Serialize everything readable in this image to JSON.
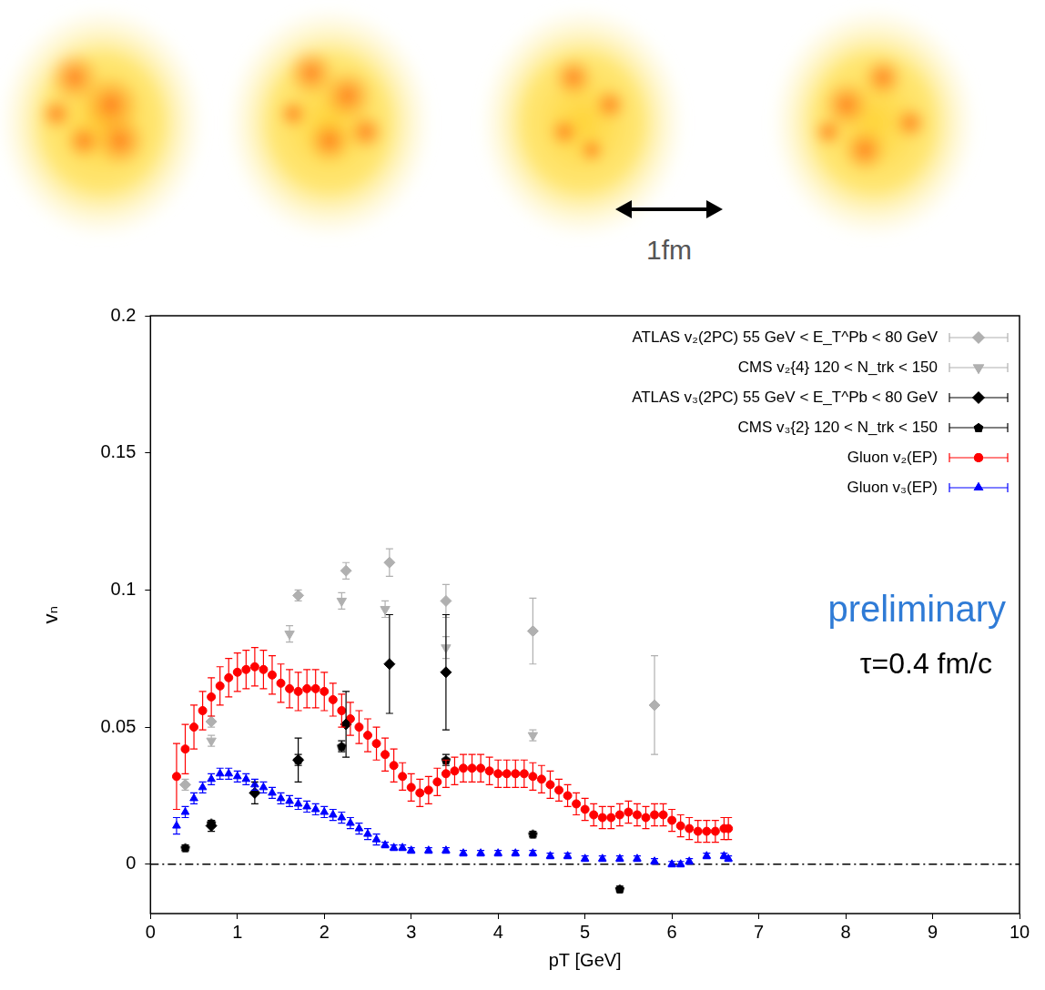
{
  "image_row": {
    "scale_label": "1fm"
  },
  "chart_data": {
    "type": "scatter",
    "x_label": "pT [GeV]",
    "y_label": "vₙ",
    "xlim": [
      0,
      10
    ],
    "xticks": [
      0,
      1,
      2,
      3,
      4,
      5,
      6,
      7,
      8,
      9,
      10
    ],
    "ylim": [
      -0.018,
      0.2
    ],
    "yticks": [
      0,
      0.05,
      0.1,
      0.15,
      0.2
    ],
    "grid": false,
    "legend": "top right",
    "hline": 0,
    "annotations": [
      {
        "text": "preliminary",
        "color": "#2f7bd6"
      },
      {
        "text": "τ=0.4 fm/c",
        "color": "#000000"
      }
    ],
    "series": [
      {
        "name": "ATLAS v₂(2PC) 55 GeV < E_T^Pb < 80 GeV",
        "color": "#b0b0b0",
        "marker": "diamond",
        "x": [
          0.4,
          0.7,
          1.7,
          2.25,
          2.75,
          3.4,
          4.4,
          5.8
        ],
        "values": [
          0.029,
          0.052,
          0.098,
          0.107,
          0.11,
          0.096,
          0.085,
          0.058
        ],
        "errors": [
          0.002,
          0.002,
          0.002,
          0.003,
          0.005,
          0.006,
          0.012,
          0.018
        ]
      },
      {
        "name": "CMS v₂{4} 120 < N_trk < 150",
        "color": "#b0b0b0",
        "marker": "triangle_down",
        "x": [
          0.7,
          1.6,
          2.2,
          2.7,
          3.4,
          4.4
        ],
        "values": [
          0.045,
          0.084,
          0.096,
          0.093,
          0.079,
          0.047
        ],
        "errors": [
          0.002,
          0.003,
          0.003,
          0.003,
          0.004,
          0.002
        ]
      },
      {
        "name": "ATLAS v₃(2PC) 55 GeV < E_T^Pb < 80 GeV",
        "color": "#000000",
        "marker": "diamond",
        "x": [
          0.7,
          1.2,
          1.7,
          2.25,
          2.75,
          3.4
        ],
        "values": [
          0.014,
          0.026,
          0.038,
          0.051,
          0.073,
          0.07
        ],
        "errors": [
          0.002,
          0.004,
          0.008,
          0.012,
          0.018,
          0.021
        ]
      },
      {
        "name": "CMS v₃{2} 120 < N_trk < 150",
        "color": "#000000",
        "marker": "pentagon",
        "x": [
          0.4,
          0.7,
          1.7,
          2.2,
          3.4,
          4.4,
          5.4
        ],
        "values": [
          0.006,
          0.015,
          0.038,
          0.043,
          0.038,
          0.011,
          -0.009
        ],
        "errors": [
          0.001,
          0.001,
          0.002,
          0.002,
          0.002,
          0.001,
          0.001
        ]
      },
      {
        "name": "Gluon v₂(EP)",
        "color": "#ff0000",
        "marker": "circle",
        "x": [
          0.3,
          0.4,
          0.5,
          0.6,
          0.7,
          0.8,
          0.9,
          1.0,
          1.1,
          1.2,
          1.3,
          1.4,
          1.5,
          1.6,
          1.7,
          1.8,
          1.9,
          2.0,
          2.1,
          2.2,
          2.3,
          2.4,
          2.5,
          2.6,
          2.7,
          2.8,
          2.9,
          3.0,
          3.1,
          3.2,
          3.3,
          3.4,
          3.5,
          3.6,
          3.7,
          3.8,
          3.9,
          4.0,
          4.1,
          4.2,
          4.3,
          4.4,
          4.5,
          4.6,
          4.7,
          4.8,
          4.9,
          5.0,
          5.1,
          5.2,
          5.3,
          5.4,
          5.5,
          5.6,
          5.7,
          5.8,
          5.9,
          6.0,
          6.1,
          6.2,
          6.3,
          6.4,
          6.5,
          6.6,
          6.65
        ],
        "values": [
          0.032,
          0.042,
          0.05,
          0.056,
          0.061,
          0.065,
          0.068,
          0.07,
          0.071,
          0.072,
          0.071,
          0.069,
          0.066,
          0.064,
          0.063,
          0.064,
          0.064,
          0.063,
          0.06,
          0.056,
          0.053,
          0.05,
          0.047,
          0.044,
          0.04,
          0.036,
          0.032,
          0.028,
          0.026,
          0.027,
          0.03,
          0.033,
          0.034,
          0.035,
          0.035,
          0.035,
          0.034,
          0.033,
          0.033,
          0.033,
          0.033,
          0.032,
          0.031,
          0.029,
          0.027,
          0.025,
          0.022,
          0.02,
          0.018,
          0.017,
          0.017,
          0.018,
          0.019,
          0.018,
          0.017,
          0.018,
          0.018,
          0.016,
          0.014,
          0.013,
          0.012,
          0.012,
          0.012,
          0.013,
          0.013
        ],
        "errors": [
          0.012,
          0.009,
          0.008,
          0.007,
          0.007,
          0.007,
          0.007,
          0.007,
          0.007,
          0.007,
          0.007,
          0.007,
          0.007,
          0.007,
          0.007,
          0.007,
          0.007,
          0.007,
          0.006,
          0.006,
          0.006,
          0.006,
          0.006,
          0.006,
          0.006,
          0.006,
          0.005,
          0.005,
          0.005,
          0.005,
          0.005,
          0.005,
          0.005,
          0.005,
          0.005,
          0.005,
          0.005,
          0.005,
          0.005,
          0.005,
          0.005,
          0.005,
          0.005,
          0.005,
          0.004,
          0.004,
          0.004,
          0.004,
          0.004,
          0.004,
          0.004,
          0.004,
          0.004,
          0.004,
          0.004,
          0.004,
          0.004,
          0.004,
          0.004,
          0.004,
          0.004,
          0.004,
          0.004,
          0.004,
          0.004
        ]
      },
      {
        "name": "Gluon v₃(EP)",
        "color": "#0000ff",
        "marker": "triangle",
        "x": [
          0.3,
          0.4,
          0.5,
          0.6,
          0.7,
          0.8,
          0.9,
          1.0,
          1.1,
          1.2,
          1.3,
          1.4,
          1.5,
          1.6,
          1.7,
          1.8,
          1.9,
          2.0,
          2.1,
          2.2,
          2.3,
          2.4,
          2.5,
          2.6,
          2.7,
          2.8,
          2.9,
          3.0,
          3.2,
          3.4,
          3.6,
          3.8,
          4.0,
          4.2,
          4.4,
          4.6,
          4.8,
          5.0,
          5.2,
          5.4,
          5.6,
          5.8,
          6.0,
          6.1,
          6.2,
          6.4,
          6.6,
          6.65
        ],
        "values": [
          0.014,
          0.019,
          0.024,
          0.028,
          0.031,
          0.033,
          0.033,
          0.032,
          0.031,
          0.029,
          0.028,
          0.026,
          0.024,
          0.023,
          0.022,
          0.021,
          0.02,
          0.019,
          0.018,
          0.017,
          0.015,
          0.013,
          0.011,
          0.009,
          0.007,
          0.006,
          0.006,
          0.005,
          0.005,
          0.005,
          0.004,
          0.004,
          0.004,
          0.004,
          0.004,
          0.003,
          0.003,
          0.002,
          0.002,
          0.002,
          0.002,
          0.001,
          0.0,
          0.0,
          0.001,
          0.003,
          0.003,
          0.002
        ],
        "errors": [
          0.003,
          0.002,
          0.002,
          0.002,
          0.002,
          0.002,
          0.002,
          0.002,
          0.002,
          0.002,
          0.002,
          0.002,
          0.002,
          0.002,
          0.002,
          0.002,
          0.002,
          0.002,
          0.002,
          0.002,
          0.002,
          0.002,
          0.002,
          0.002,
          0.001,
          0.001,
          0.001,
          0.001,
          0.001,
          0.001,
          0.001,
          0.001,
          0.001,
          0.001,
          0.001,
          0.001,
          0.001,
          0.001,
          0.001,
          0.001,
          0.001,
          0.001,
          0.001,
          0.001,
          0.001,
          0.001,
          0.001,
          0.001
        ]
      }
    ]
  }
}
